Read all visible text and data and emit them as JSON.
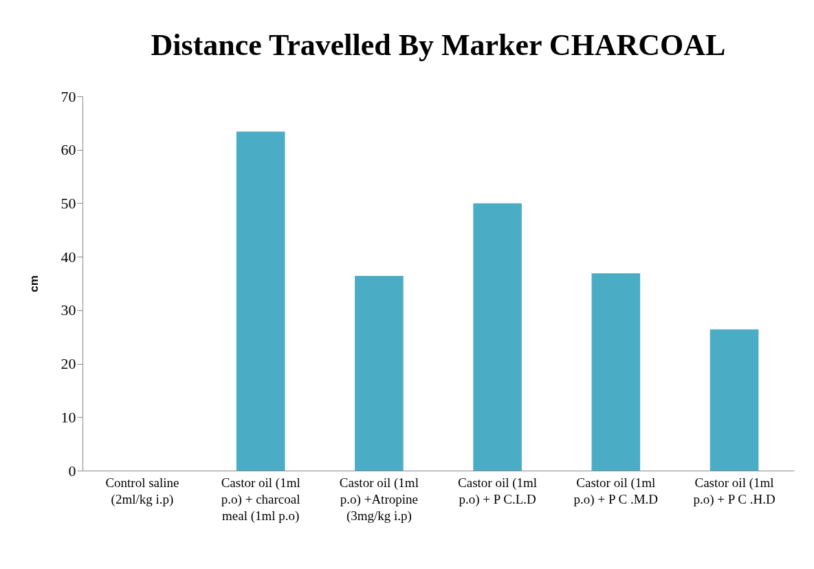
{
  "chart_data": {
    "type": "bar",
    "title": "Distance Travelled By Marker CHARCOAL",
    "ylabel": "cm",
    "categories": [
      "Control saline (2ml/kg i.p)",
      "Castor oil (1ml p.o) + charcoal meal (1ml p.o)",
      "Castor oil (1ml p.o) +Atropine (3mg/kg i.p)",
      "Castor oil (1ml p.o) + P C.L.D",
      "Castor oil (1ml p.o) + P C .M.D",
      "Castor oil (1ml p.o) + P C .H.D"
    ],
    "values": [
      0,
      63.4,
      36.4,
      50,
      36.9,
      26.4
    ],
    "color": "#4bacc6",
    "ylim": [
      0,
      70
    ],
    "yticks": [
      0,
      10,
      20,
      30,
      40,
      50,
      60,
      70
    ],
    "grid": false
  }
}
